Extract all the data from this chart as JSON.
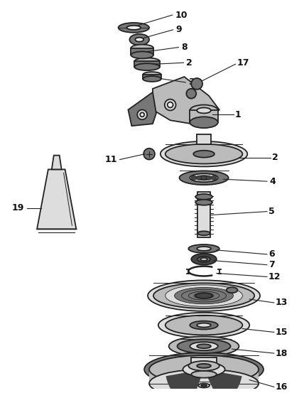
{
  "background_color": "#ffffff",
  "figsize": [
    4.28,
    5.53
  ],
  "dpi": 100,
  "line_color": "#222222",
  "text_color": "#111111",
  "gray_dark": "#444444",
  "gray_mid": "#777777",
  "gray_light": "#bbbbbb",
  "gray_lighter": "#dddddd",
  "gray_white": "#eeeeee"
}
